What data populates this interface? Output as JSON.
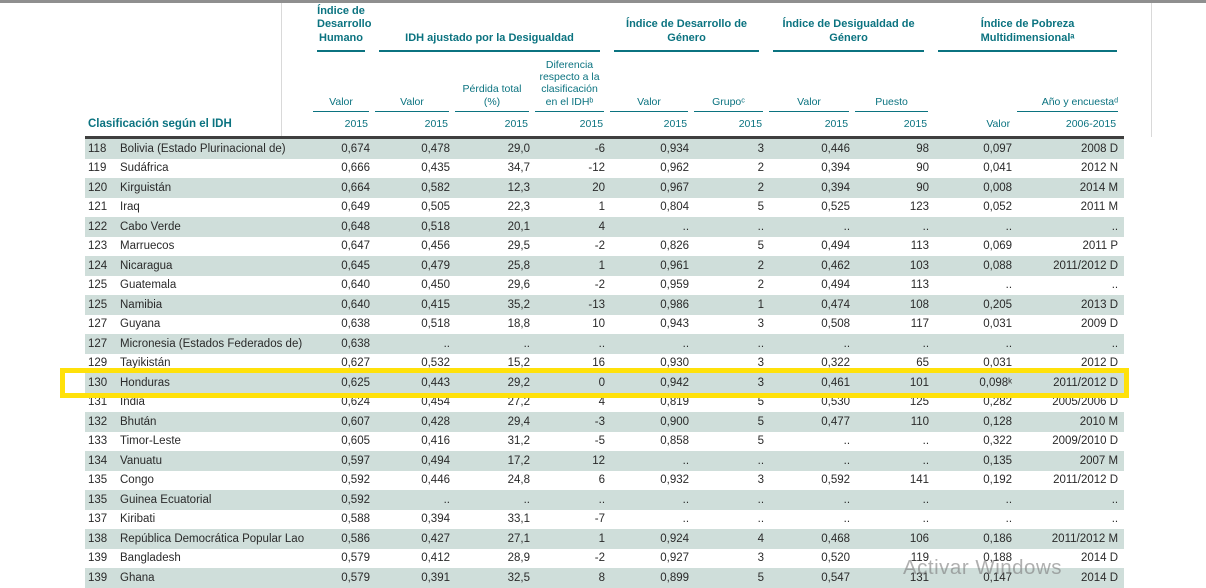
{
  "colors": {
    "teal_accent": "#0b7380",
    "row_stripe": "#cfdeda",
    "highlight_yellow": "#ffe10a",
    "header_rule_dark": "#3f3f3f"
  },
  "watermark": {
    "text": "Activar Windows"
  },
  "table": {
    "stub_label": "Clasificación según el IDH",
    "groups": [
      {
        "title": "Índice de Desarrollo Humano",
        "span": 1
      },
      {
        "title": "IDH ajustado por la Desigualdad",
        "span": 3
      },
      {
        "title": "Índice de Desarrollo de Género",
        "span": 2
      },
      {
        "title": "Índice de Desigualdad de Género",
        "span": 2
      },
      {
        "title": "Índice de Pobreza Multidimensionalᵃ",
        "span": 2
      }
    ],
    "columns": [
      {
        "label": "Valor",
        "year": "2015"
      },
      {
        "label": "Valor",
        "year": "2015"
      },
      {
        "label": "Pérdida total (%)",
        "year": "2015"
      },
      {
        "label": "Diferencia respecto a la clasificación en el IDHᵇ",
        "year": "2015"
      },
      {
        "label": "Valor",
        "year": "2015"
      },
      {
        "label": "Grupoᶜ",
        "year": "2015"
      },
      {
        "label": "Valor",
        "year": "2015"
      },
      {
        "label": "Puesto",
        "year": "2015"
      },
      {
        "label": "",
        "year": "Valor"
      },
      {
        "label": "Año y encuestaᵈ",
        "year": "2006-2015"
      }
    ],
    "rows": [
      {
        "rank": "118",
        "country": "Bolivia (Estado Plurinacional de)",
        "values": [
          "0,674",
          "0,478",
          "29,0",
          "-6",
          "0,934",
          "3",
          "0,446",
          "98",
          "0,097",
          "2008 D"
        ],
        "highlight": false
      },
      {
        "rank": "119",
        "country": "Sudáfrica",
        "values": [
          "0,666",
          "0,435",
          "34,7",
          "-12",
          "0,962",
          "2",
          "0,394",
          "90",
          "0,041",
          "2012 N"
        ],
        "highlight": false
      },
      {
        "rank": "120",
        "country": "Kirguistán",
        "values": [
          "0,664",
          "0,582",
          "12,3",
          "20",
          "0,967",
          "2",
          "0,394",
          "90",
          "0,008",
          "2014 M"
        ],
        "highlight": false
      },
      {
        "rank": "121",
        "country": "Iraq",
        "values": [
          "0,649",
          "0,505",
          "22,3",
          "1",
          "0,804",
          "5",
          "0,525",
          "123",
          "0,052",
          "2011 M"
        ],
        "highlight": false
      },
      {
        "rank": "122",
        "country": "Cabo Verde",
        "values": [
          "0,648",
          "0,518",
          "20,1",
          "4",
          "..",
          "..",
          "..",
          "..",
          "..",
          ".."
        ],
        "highlight": false
      },
      {
        "rank": "123",
        "country": "Marruecos",
        "values": [
          "0,647",
          "0,456",
          "29,5",
          "-2",
          "0,826",
          "5",
          "0,494",
          "113",
          "0,069",
          "2011 P"
        ],
        "highlight": false
      },
      {
        "rank": "124",
        "country": "Nicaragua",
        "values": [
          "0,645",
          "0,479",
          "25,8",
          "1",
          "0,961",
          "2",
          "0,462",
          "103",
          "0,088",
          "2011/2012 D"
        ],
        "highlight": false
      },
      {
        "rank": "125",
        "country": "Guatemala",
        "values": [
          "0,640",
          "0,450",
          "29,6",
          "-2",
          "0,959",
          "2",
          "0,494",
          "113",
          "..",
          ".."
        ],
        "highlight": false
      },
      {
        "rank": "125",
        "country": "Namibia",
        "values": [
          "0,640",
          "0,415",
          "35,2",
          "-13",
          "0,986",
          "1",
          "0,474",
          "108",
          "0,205",
          "2013 D"
        ],
        "highlight": false
      },
      {
        "rank": "127",
        "country": "Guyana",
        "values": [
          "0,638",
          "0,518",
          "18,8",
          "10",
          "0,943",
          "3",
          "0,508",
          "117",
          "0,031",
          "2009 D"
        ],
        "highlight": false
      },
      {
        "rank": "127",
        "country": "Micronesia (Estados Federados de)",
        "values": [
          "0,638",
          "..",
          "..",
          "..",
          "..",
          "..",
          "..",
          "..",
          "..",
          ".."
        ],
        "highlight": false
      },
      {
        "rank": "129",
        "country": "Tayikistán",
        "values": [
          "0,627",
          "0,532",
          "15,2",
          "16",
          "0,930",
          "3",
          "0,322",
          "65",
          "0,031",
          "2012 D"
        ],
        "highlight": false
      },
      {
        "rank": "130",
        "country": "Honduras",
        "values": [
          "0,625",
          "0,443",
          "29,2",
          "0",
          "0,942",
          "3",
          "0,461",
          "101",
          "0,098ᵏ",
          "2011/2012 D"
        ],
        "highlight": true
      },
      {
        "rank": "131",
        "country": "India",
        "values": [
          "0,624",
          "0,454",
          "27,2",
          "4",
          "0,819",
          "5",
          "0,530",
          "125",
          "0,282",
          "2005/2006 D"
        ],
        "highlight": false
      },
      {
        "rank": "132",
        "country": "Bhután",
        "values": [
          "0,607",
          "0,428",
          "29,4",
          "-3",
          "0,900",
          "5",
          "0,477",
          "110",
          "0,128",
          "2010 M"
        ],
        "highlight": false
      },
      {
        "rank": "133",
        "country": "Timor-Leste",
        "values": [
          "0,605",
          "0,416",
          "31,2",
          "-5",
          "0,858",
          "5",
          "..",
          "..",
          "0,322",
          "2009/2010 D"
        ],
        "highlight": false
      },
      {
        "rank": "134",
        "country": "Vanuatu",
        "values": [
          "0,597",
          "0,494",
          "17,2",
          "12",
          "..",
          "..",
          "..",
          "..",
          "0,135",
          "2007 M"
        ],
        "highlight": false
      },
      {
        "rank": "135",
        "country": "Congo",
        "values": [
          "0,592",
          "0,446",
          "24,8",
          "6",
          "0,932",
          "3",
          "0,592",
          "141",
          "0,192",
          "2011/2012 D"
        ],
        "highlight": false
      },
      {
        "rank": "135",
        "country": "Guinea Ecuatorial",
        "values": [
          "0,592",
          "..",
          "..",
          "..",
          "..",
          "..",
          "..",
          "..",
          "..",
          ".."
        ],
        "highlight": false
      },
      {
        "rank": "137",
        "country": "Kiribati",
        "values": [
          "0,588",
          "0,394",
          "33,1",
          "-7",
          "..",
          "..",
          "..",
          "..",
          "..",
          ".."
        ],
        "highlight": false
      },
      {
        "rank": "138",
        "country": "República Democrática Popular Lao",
        "values": [
          "0,586",
          "0,427",
          "27,1",
          "1",
          "0,924",
          "4",
          "0,468",
          "106",
          "0,186",
          "2011/2012 M"
        ],
        "highlight": false
      },
      {
        "rank": "139",
        "country": "Bangladesh",
        "values": [
          "0,579",
          "0,412",
          "28,9",
          "-2",
          "0,927",
          "3",
          "0,520",
          "119",
          "0,188",
          "2014 D"
        ],
        "highlight": false
      },
      {
        "rank": "139",
        "country": "Ghana",
        "values": [
          "0,579",
          "0,391",
          "32,5",
          "8",
          "0,899",
          "5",
          "0,547",
          "131",
          "0,147",
          "2014 D"
        ],
        "highlight": false
      }
    ]
  }
}
